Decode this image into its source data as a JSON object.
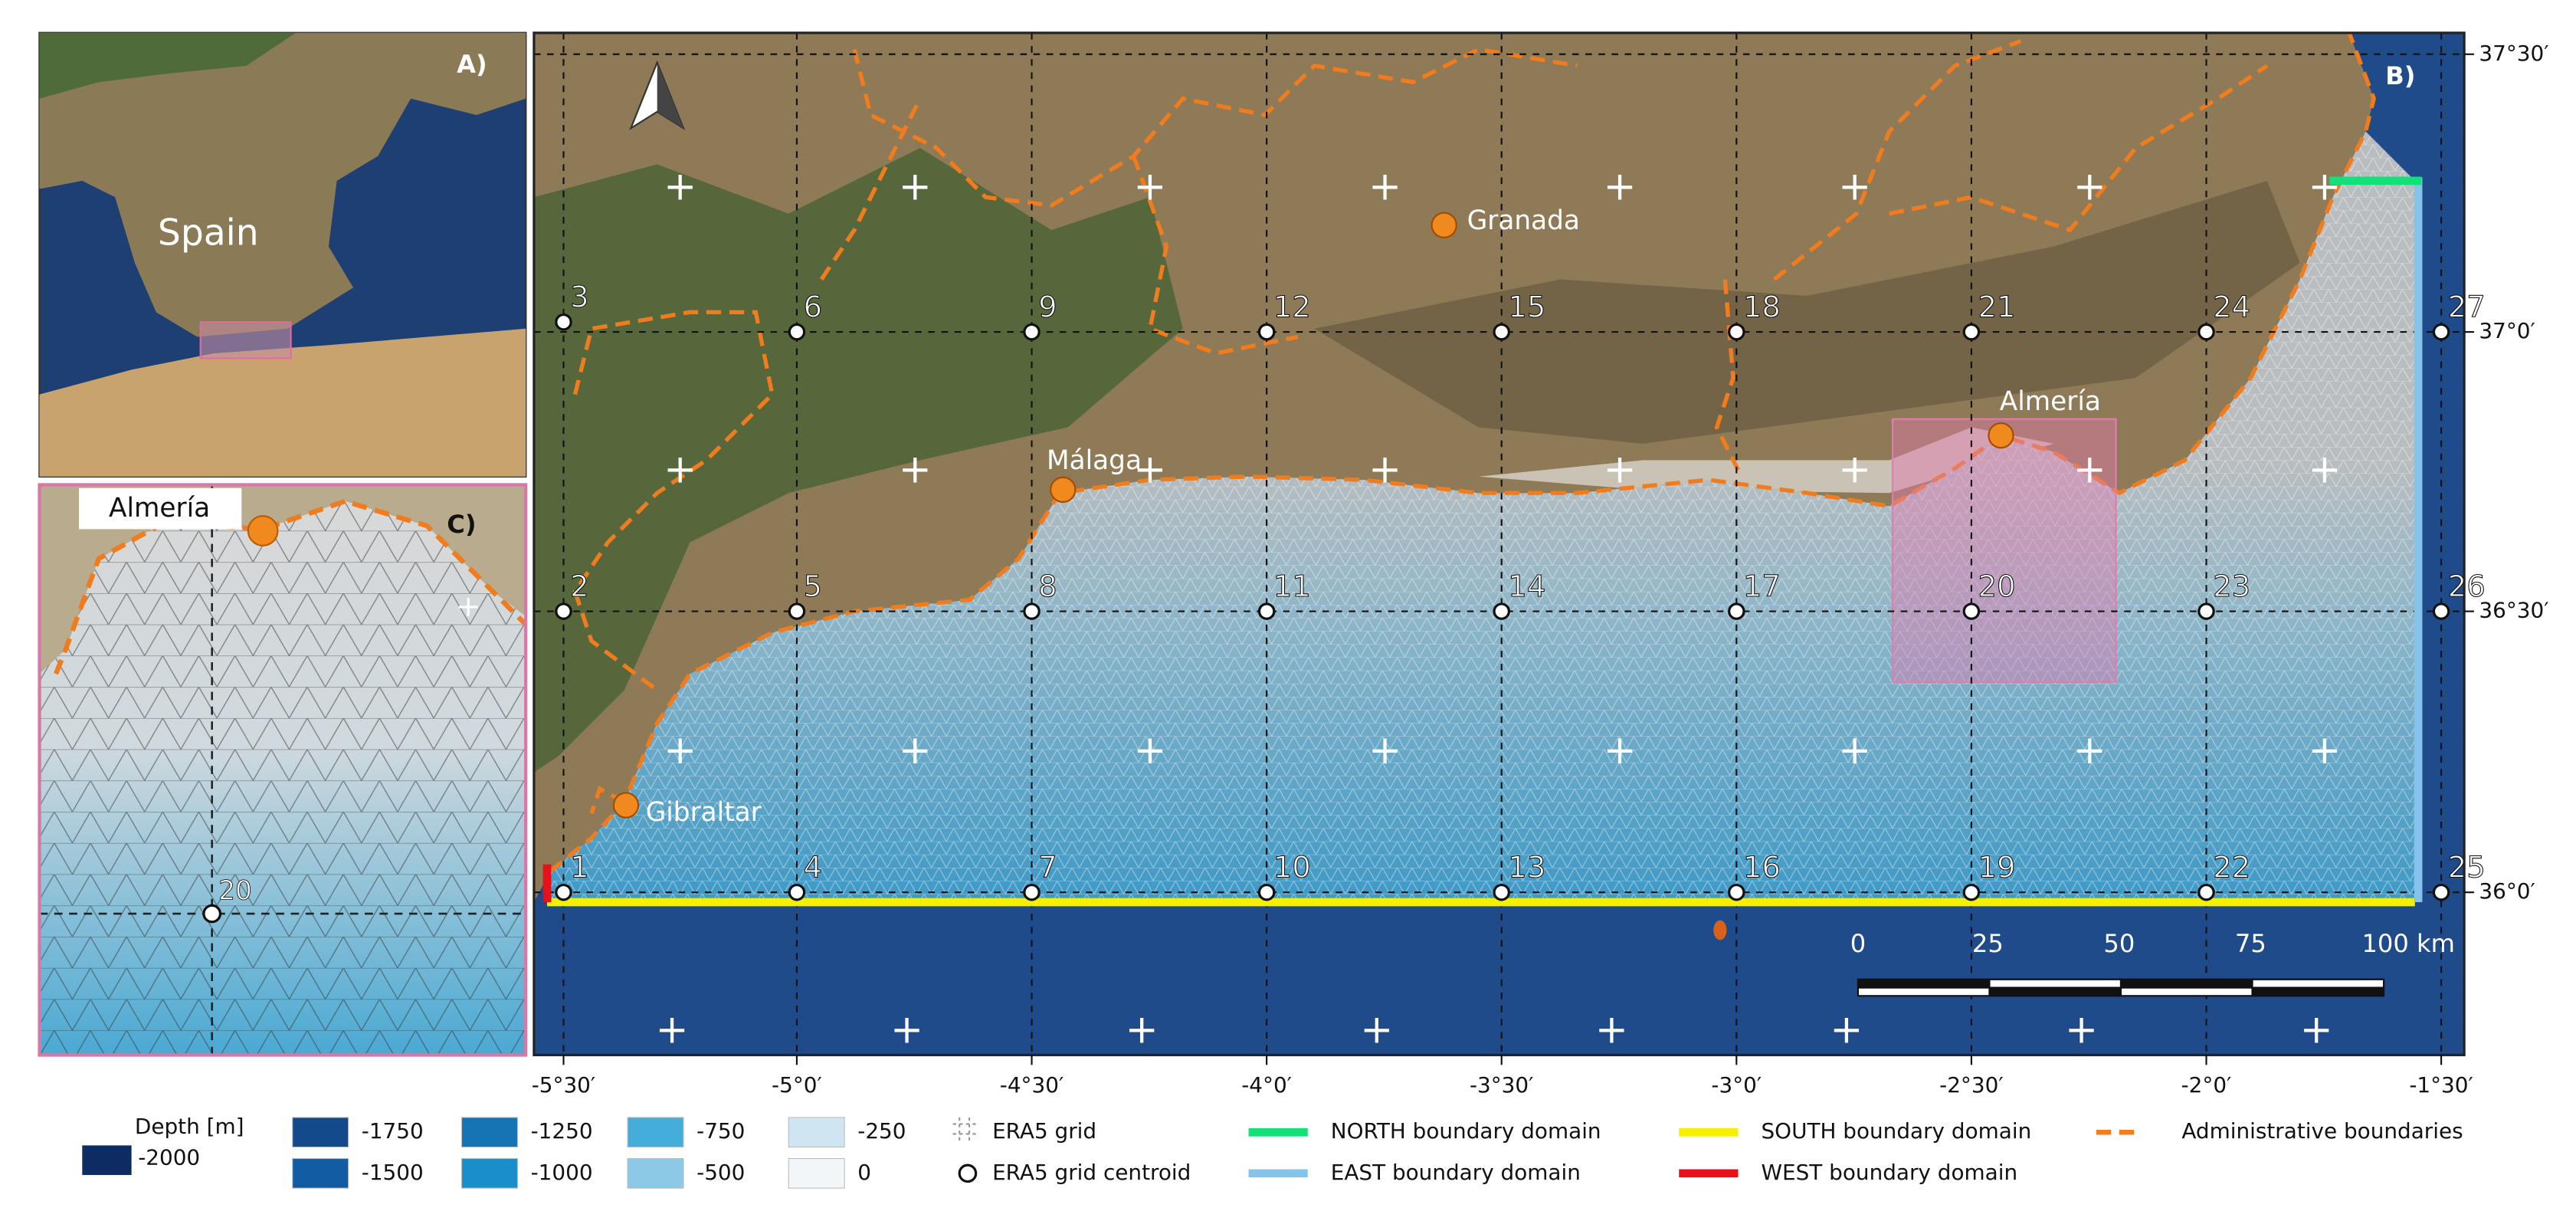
{
  "panel_labels": {
    "a": "A)",
    "b": "B)",
    "c": "C)"
  },
  "panel_a": {
    "country": "Spain"
  },
  "panel_c": {
    "place": "Almería",
    "centroid": "20"
  },
  "map": {
    "places": [
      "Granada",
      "Málaga",
      "Almería",
      "Gibraltar"
    ],
    "centroids": [
      "1",
      "2",
      "3",
      "4",
      "5",
      "6",
      "7",
      "8",
      "9",
      "10",
      "11",
      "12",
      "13",
      "14",
      "15",
      "16",
      "17",
      "18",
      "19",
      "20",
      "21",
      "22",
      "23",
      "24",
      "25",
      "26",
      "27"
    ],
    "x_ticks": [
      "-5°30′",
      "-5°0′",
      "-4°30′",
      "-4°0′",
      "-3°30′",
      "-3°0′",
      "-2°30′",
      "-2°0′",
      "-1°30′"
    ],
    "y_ticks": [
      "37°30′",
      "37°0′",
      "36°30′",
      "36°0′"
    ],
    "scale": [
      "0",
      "25",
      "50",
      "75",
      "100 km"
    ]
  },
  "legend": {
    "depth_title": "Depth [m]",
    "depth_levels": [
      "-2000",
      "-1750",
      "-1500",
      "-1250",
      "-1000",
      "-750",
      "-500",
      "-250",
      "0"
    ],
    "items": [
      "ERA5 grid",
      "ERA5 grid centroid",
      "NORTH  boundary domain",
      "EAST boundary domain",
      "SOUTH  boundary domain",
      "WEST  boundary domain",
      "Administrative boundaries"
    ]
  }
}
